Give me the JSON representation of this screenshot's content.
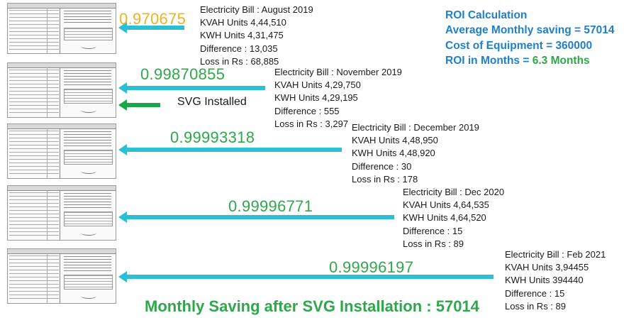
{
  "bills": [
    {
      "power_factor": "0.970675",
      "title": "Electricity Bill : August 2019",
      "kvah": "KVAH Units 4,44,510",
      "kwh": "KWH Units 4,31,475",
      "difference": "Difference : 13,035",
      "loss": "Loss in Rs : 68,885"
    },
    {
      "power_factor": "0.99870855",
      "title": "Electricity Bill : November 2019",
      "kvah": "KVAH Units 4,29,750",
      "kwh": "KWH Units 4,29,195",
      "difference": "Difference : 555",
      "loss": "Loss in Rs : 3,297"
    },
    {
      "power_factor": "0.99993318",
      "title": "Electricity Bill : December 2019",
      "kvah": "KVAH Units 4,48,950",
      "kwh": "KWH Units 4,48,920",
      "difference": "Difference : 30",
      "loss": "Loss in Rs : 178"
    },
    {
      "power_factor": "0.99996771",
      "title": "Electricity Bill : Dec 2020",
      "kvah": "KVAH Units 4,64,535",
      "kwh": "KWH Units 4,64,520",
      "difference": "Difference : 15",
      "loss": "Loss in Rs : 89"
    },
    {
      "power_factor": "0.99996197",
      "title": "Electricity Bill : Feb 2021",
      "kvah": "KVAH Units 3,94455",
      "kwh": "KWH Units 394440",
      "difference": "Difference : 15",
      "loss": "Loss in Rs : 89"
    }
  ],
  "svg_marker": {
    "label": "SVG Installed"
  },
  "roi": {
    "heading": "ROI Calculation",
    "avg_label": "Average Monthly saving = ",
    "avg_value": "57014",
    "cost_label": "Cost of Equipment = ",
    "cost_value": "360000",
    "months_label": "ROI in Months = ",
    "months_value": "6.3 Months"
  },
  "summary": "Monthly Saving after SVG Installation : 57014",
  "colors": {
    "arrow": "#2bbfd6",
    "svg_arrow": "#1aa64a",
    "pf_first": "#f2b21b",
    "pf": "#2ea84a",
    "roi_label": "#1f7fc8",
    "roi_value": "#2ea84a"
  }
}
